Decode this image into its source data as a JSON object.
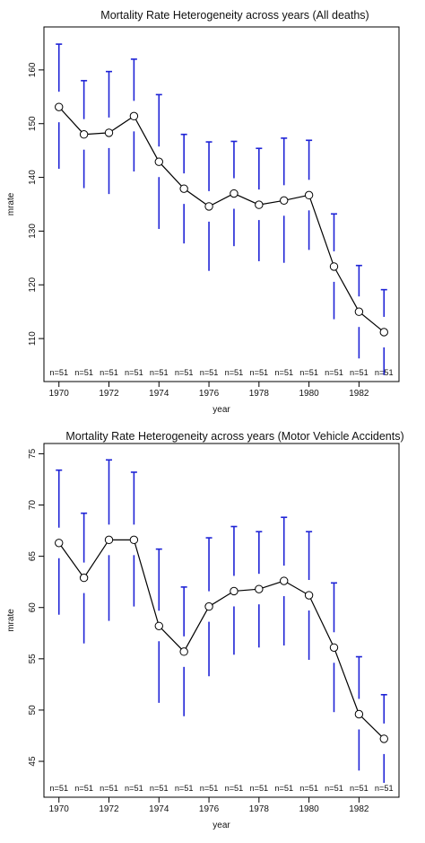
{
  "chart_data": [
    {
      "type": "line",
      "title": "Mortality Rate Heterogeneity across years (All deaths)",
      "xlabel": "year",
      "ylabel": "mrate",
      "x": [
        1970,
        1971,
        1972,
        1973,
        1974,
        1975,
        1976,
        1977,
        1978,
        1979,
        1980,
        1981,
        1982,
        1983
      ],
      "xlim": [
        1969.4,
        1983.6
      ],
      "xticks": [
        1970,
        1972,
        1974,
        1976,
        1978,
        1980,
        1982
      ],
      "ylim": [
        102,
        168
      ],
      "yticks": [
        110,
        120,
        130,
        140,
        150,
        160
      ],
      "series": [
        {
          "values": [
            153.1,
            148.0,
            148.3,
            151.4,
            142.9,
            137.9,
            134.6,
            137.0,
            134.9,
            135.7,
            136.7,
            123.4,
            115.0,
            111.2
          ]
        }
      ],
      "error_bars": {
        "upper": [
          164.8,
          158.0,
          159.7,
          162.0,
          155.4,
          148.0,
          146.6,
          146.7,
          145.4,
          147.3,
          146.9,
          133.2,
          123.6,
          119.1
        ],
        "lower": [
          141.6,
          138.0,
          136.9,
          141.1,
          130.4,
          127.7,
          122.6,
          127.2,
          124.4,
          124.1,
          126.5,
          113.6,
          106.3,
          103.2
        ]
      },
      "annotations": [
        "n=51",
        "n=51",
        "n=51",
        "n=51",
        "n=51",
        "n=51",
        "n=51",
        "n=51",
        "n=51",
        "n=51",
        "n=51",
        "n=51",
        "n=51",
        "n=51"
      ],
      "grid": false
    },
    {
      "type": "line",
      "title": "Mortality Rate Heterogeneity across years (Motor Vehicle Accidents)",
      "xlabel": "year",
      "ylabel": "mrate",
      "x": [
        1970,
        1971,
        1972,
        1973,
        1974,
        1975,
        1976,
        1977,
        1978,
        1979,
        1980,
        1981,
        1982,
        1983
      ],
      "xlim": [
        1969.4,
        1983.6
      ],
      "xticks": [
        1970,
        1972,
        1974,
        1976,
        1978,
        1980,
        1982
      ],
      "ylim": [
        41.5,
        76
      ],
      "yticks": [
        45,
        50,
        55,
        60,
        65,
        70,
        75
      ],
      "series": [
        {
          "values": [
            66.3,
            62.9,
            66.6,
            66.6,
            58.2,
            55.7,
            60.1,
            61.6,
            61.8,
            62.6,
            61.2,
            56.1,
            49.6,
            47.2
          ]
        }
      ],
      "error_bars": {
        "upper": [
          73.4,
          69.2,
          74.4,
          73.2,
          65.7,
          62.0,
          66.8,
          67.9,
          67.4,
          68.8,
          67.4,
          62.4,
          55.2,
          51.5
        ],
        "lower": [
          59.3,
          56.5,
          58.7,
          60.1,
          50.7,
          49.4,
          53.3,
          55.4,
          56.1,
          56.3,
          54.9,
          49.8,
          44.1,
          42.9
        ]
      },
      "annotations": [
        "n=51",
        "n=51",
        "n=51",
        "n=51",
        "n=51",
        "n=51",
        "n=51",
        "n=51",
        "n=51",
        "n=51",
        "n=51",
        "n=51",
        "n=51",
        "n=51"
      ],
      "grid": false
    }
  ],
  "colors": {
    "error_bar": "#1f24d6",
    "line": "#000000",
    "axis": "#000000"
  }
}
